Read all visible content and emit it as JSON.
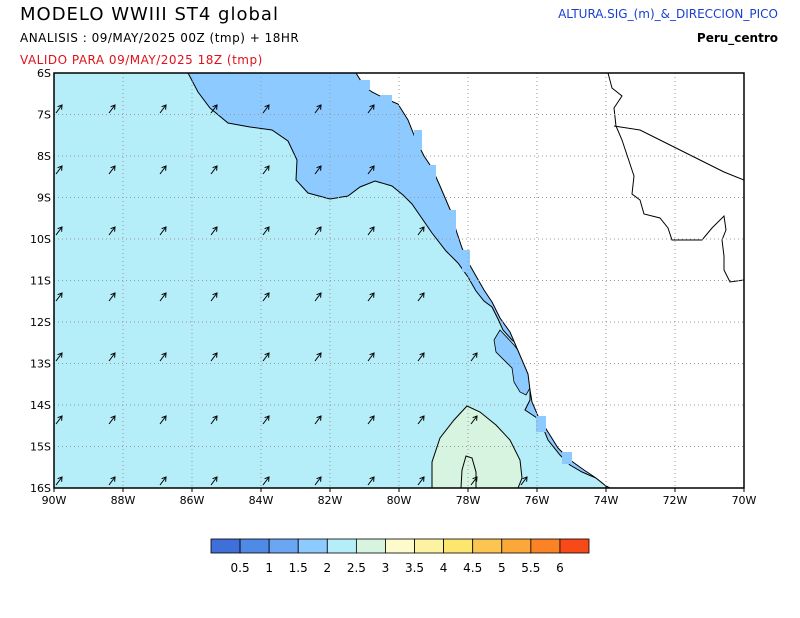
{
  "header": {
    "title": "MODELO  WWIII  ST4  global",
    "analysis": "ANALISIS : 09/MAY/2025 00Z  (tmp) + 18HR",
    "valid": "VALIDO PARA  09/MAY/2025 18Z  (tmp)",
    "variable": "ALTURA.SIG_(m)_&_DIRECCION_PICO",
    "region": "Peru_centro"
  },
  "axes": {
    "lon_labels": [
      "90W",
      "88W",
      "86W",
      "84W",
      "82W",
      "80W",
      "78W",
      "76W",
      "74W",
      "72W",
      "70W"
    ],
    "lat_labels": [
      "6S",
      "7S",
      "8S",
      "9S",
      "10S",
      "11S",
      "12S",
      "13S",
      "14S",
      "15S",
      "16S"
    ],
    "lon_range": [
      -90,
      -70
    ],
    "lat_range": [
      -6,
      -16
    ],
    "grid": "dotted"
  },
  "colorbar": {
    "colors": [
      "#3f6fd8",
      "#4f8ae6",
      "#6aa6f2",
      "#8dcaff",
      "#b5edf8",
      "#d6f4e0",
      "#fdfbcc",
      "#fdf2a2",
      "#fde670",
      "#fcc552",
      "#fca739",
      "#fb8325",
      "#f74a18"
    ],
    "labels": [
      "0.5",
      "1",
      "1.5",
      "2",
      "2.5",
      "3",
      "3.5",
      "4",
      "4.5",
      "5",
      "5.5",
      "6"
    ]
  },
  "fields": {
    "land": "#ffffff",
    "wave_height_ranges_m": [
      "1.5-2",
      "2-2.5",
      "2.5-3"
    ],
    "peak_direction": "from the southwest (arrows pointing north-east)"
  }
}
